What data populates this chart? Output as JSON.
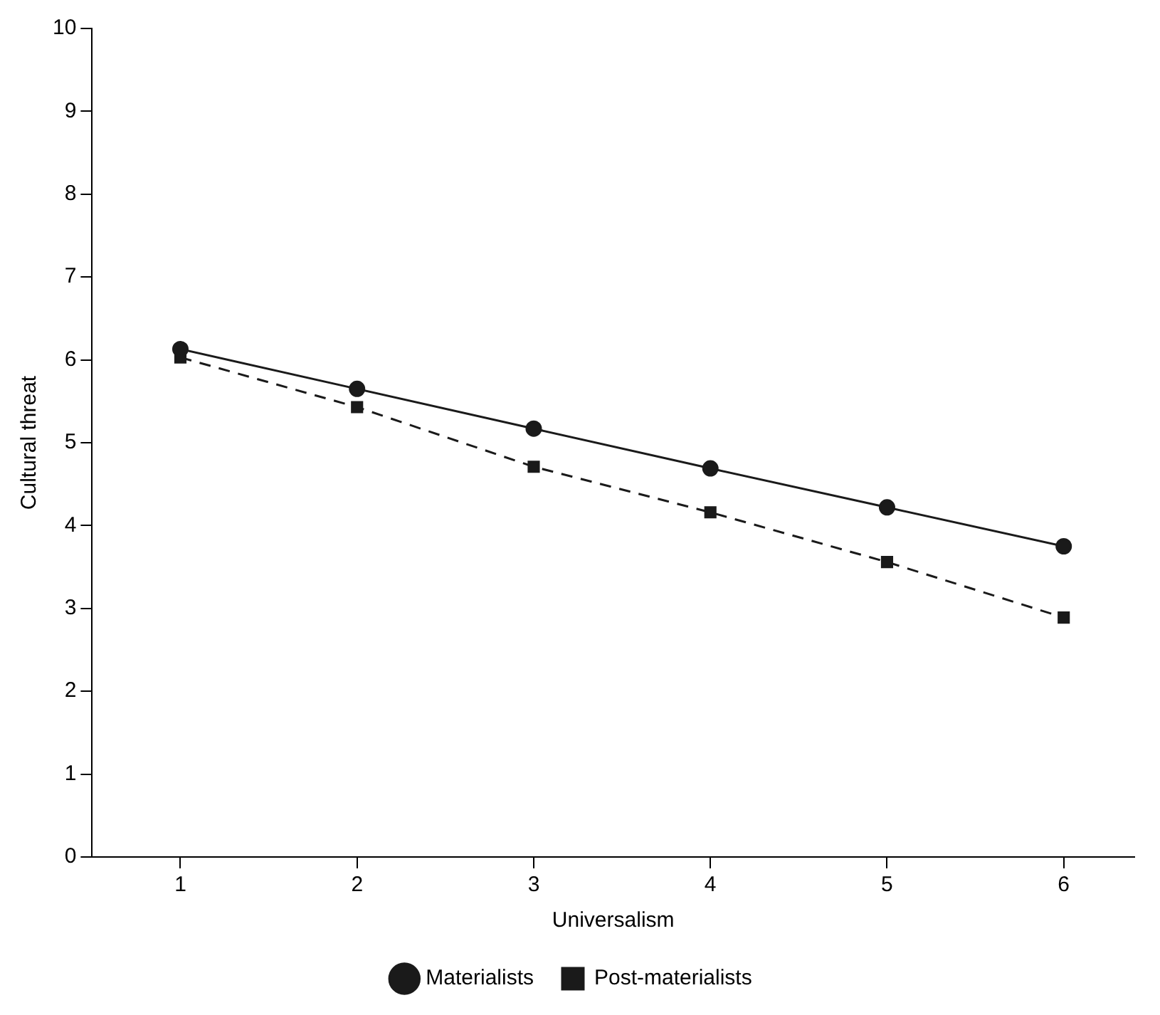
{
  "chart_data": {
    "type": "line",
    "xlabel": "Universalism",
    "ylabel": "Cultural threat",
    "x": [
      1,
      2,
      3,
      4,
      5,
      6
    ],
    "series": [
      {
        "name": "Materialists",
        "color": "#1a1a1a",
        "values": [
          6.13,
          5.65,
          5.17,
          4.69,
          4.22,
          3.75
        ],
        "marker": "circle",
        "line_style": "solid"
      },
      {
        "name": "Post-materialists",
        "color": "#1a1a1a",
        "values": [
          6.03,
          5.43,
          4.71,
          4.16,
          3.56,
          2.89
        ],
        "marker": "square",
        "line_style": "dashed"
      }
    ],
    "xlim": [
      0.5,
      6.4
    ],
    "xticks": [
      1,
      2,
      3,
      4,
      5,
      6
    ],
    "ylim": [
      0,
      10
    ],
    "yticks": [
      0,
      1,
      2,
      3,
      4,
      5,
      6,
      7,
      8,
      9,
      10
    ],
    "grid": false,
    "legend": "bottom"
  }
}
